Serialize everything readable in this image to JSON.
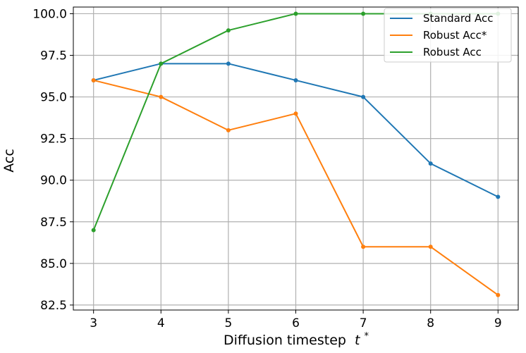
{
  "chart_data": {
    "type": "line",
    "title": "",
    "xlabel": "Diffusion timestep",
    "xlabel_symbol": "t",
    "xlabel_sup": "*",
    "ylabel": "Acc",
    "x": [
      3,
      4,
      5,
      6,
      7,
      8,
      9
    ],
    "xlim": [
      2.7,
      9.3
    ],
    "ylim": [
      82.2,
      100.4
    ],
    "yticks": [
      82.5,
      85.0,
      87.5,
      90.0,
      92.5,
      95.0,
      97.5,
      100.0
    ],
    "ytick_labels": [
      "82.5",
      "85.0",
      "87.5",
      "90.0",
      "92.5",
      "95.0",
      "97.5",
      "100.0"
    ],
    "xtick_labels": [
      "3",
      "4",
      "5",
      "6",
      "7",
      "8",
      "9"
    ],
    "grid": true,
    "legend_position": "top-right",
    "series": [
      {
        "name": "Standard Acc",
        "color": "#1f77b4",
        "values": [
          96,
          97,
          97,
          96,
          95,
          91,
          89
        ]
      },
      {
        "name": "Robust Acc*",
        "color": "#ff7f0e",
        "values": [
          96,
          95,
          93,
          94,
          86,
          86,
          83.1
        ]
      },
      {
        "name": "Robust Acc",
        "color": "#2ca02c",
        "values": [
          87,
          97,
          99,
          100,
          100,
          100,
          100
        ]
      }
    ]
  }
}
